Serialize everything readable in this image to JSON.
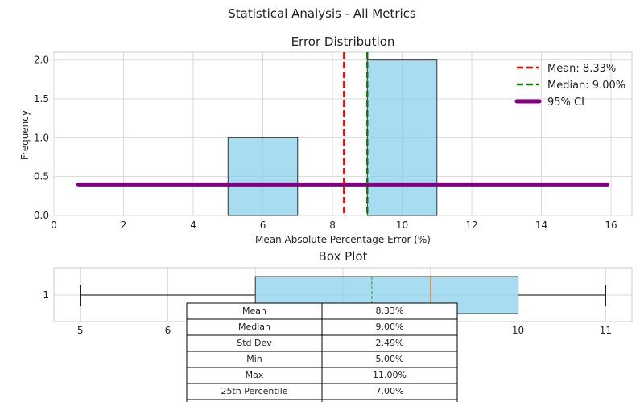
{
  "figure_title": "Statistical Analysis - All Metrics",
  "chart_data": [
    {
      "type": "histogram",
      "title": "Error Distribution",
      "xlabel": "Mean Absolute Percentage Error (%)",
      "ylabel": "Frequency",
      "xlim": [
        0,
        16.6
      ],
      "ylim": [
        0,
        2.1
      ],
      "xticks": [
        0,
        2,
        4,
        6,
        8,
        10,
        12,
        14,
        16
      ],
      "yticks": [
        0.0,
        0.5,
        1.0,
        1.5,
        2.0
      ],
      "bins": [
        {
          "start": 5,
          "end": 7,
          "count": 1
        },
        {
          "start": 7,
          "end": 9,
          "count": 0
        },
        {
          "start": 9,
          "end": 11,
          "count": 2
        }
      ],
      "bar_color": "#87CEEB",
      "mean": 8.33,
      "median": 9.0,
      "ci": {
        "low": 0.7,
        "high": 15.9,
        "level": 0.4
      },
      "legend": [
        {
          "label": "Mean: 8.33%",
          "color": "#ff0000",
          "style": "dashed"
        },
        {
          "label": "Median: 9.00%",
          "color": "#008000",
          "style": "dashed"
        },
        {
          "label": "95% CI",
          "color": "#800080",
          "style": "solid"
        }
      ],
      "legend_position": "top-right",
      "grid": true
    },
    {
      "type": "boxplot",
      "title": "Box Plot",
      "xlim": [
        4.7,
        11.3
      ],
      "xticks": [
        5,
        6,
        7,
        8,
        9,
        10,
        11
      ],
      "ytick": "1",
      "stats": {
        "whisker_low": 5,
        "q1": 7,
        "median": 9,
        "mean": 8.33,
        "q3": 10,
        "whisker_high": 11
      },
      "box_color": "#87CEEB",
      "grid": true
    }
  ],
  "stats_table": {
    "rows": [
      {
        "label": "Mean",
        "value": "8.33%"
      },
      {
        "label": "Median",
        "value": "9.00%"
      },
      {
        "label": "Std Dev",
        "value": "2.49%"
      },
      {
        "label": "Min",
        "value": "5.00%"
      },
      {
        "label": "Max",
        "value": "11.00%"
      },
      {
        "label": "25th Percentile",
        "value": "7.00%"
      },
      {
        "label": "",
        "value": ""
      }
    ]
  }
}
